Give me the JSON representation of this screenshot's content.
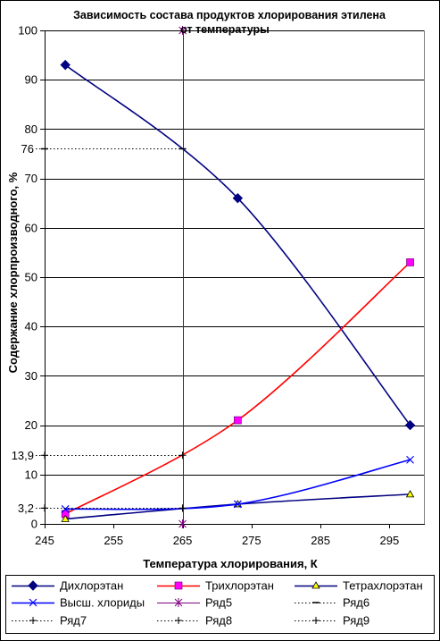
{
  "chart_data": {
    "type": "line",
    "title": [
      "Зависимость состава продуктов хлорирования этилена",
      "от температуры"
    ],
    "xlabel": "Температура хлорирования, К",
    "ylabel": "Содержание хлорпроизводного, %",
    "xlim": [
      245,
      300
    ],
    "ylim": [
      0,
      100
    ],
    "x_tick_labels": [
      "245",
      "255",
      "265",
      "275",
      "285",
      "295"
    ],
    "y_tick_labels": [
      "0",
      "10",
      "20",
      "30",
      "40",
      "50",
      "60",
      "70",
      "80",
      "90",
      "100"
    ],
    "grid": "horizontal",
    "legend_position": "bottom",
    "series": [
      {
        "name": "Дихлорэтан",
        "color": "#000080",
        "marker": "diamond",
        "marker_fill": "#000080",
        "smooth": true,
        "x": [
          248,
          273,
          298
        ],
        "y": [
          93,
          66,
          20
        ]
      },
      {
        "name": "Трихлорэтан",
        "color": "#FF0000",
        "marker": "square",
        "marker_fill": "#FF00FF",
        "smooth": true,
        "x": [
          248,
          273,
          298
        ],
        "y": [
          2,
          21,
          53
        ]
      },
      {
        "name": "Тетрахлорэтан",
        "color": "#000080",
        "marker": "triangle",
        "marker_fill": "#FFFF00",
        "smooth": true,
        "x": [
          248,
          273,
          298
        ],
        "y": [
          1,
          4,
          6
        ]
      },
      {
        "name": "Высш. хлориды",
        "color": "#0000FF",
        "marker": "x",
        "marker_fill": "none",
        "smooth": true,
        "x": [
          248,
          273,
          298
        ],
        "y": [
          3,
          4,
          13
        ]
      },
      {
        "name": "Ряд5",
        "color": "#800080",
        "marker": "asterisk",
        "marker_fill": "none",
        "smooth": false,
        "x": [
          265,
          265
        ],
        "y": [
          0,
          100
        ]
      },
      {
        "name": "Ряд6",
        "color": "#000000",
        "line_style": "dotted",
        "marker": "dash",
        "marker_fill": "none",
        "smooth": false,
        "x": [
          245,
          265
        ],
        "y": [
          76,
          76
        ],
        "data_label": "76"
      },
      {
        "name": "Ряд7",
        "color": "#000000",
        "line_style": "dotted",
        "marker": "plus",
        "marker_fill": "none",
        "smooth": false,
        "x": [
          245,
          265
        ],
        "y": [
          13.9,
          13.9
        ],
        "data_label": "13,9"
      },
      {
        "name": "Ряд8",
        "color": "#000000",
        "line_style": "dotted",
        "marker": "plus",
        "marker_fill": "none",
        "smooth": false,
        "x": [
          245,
          265
        ],
        "y": [
          3.2,
          3.2
        ],
        "data_label": "3,2"
      },
      {
        "name": "Ряд9",
        "color": "#000000",
        "line_style": "dotted",
        "marker": "plus",
        "marker_fill": "none",
        "smooth": false,
        "x": [
          245,
          265
        ],
        "y": [
          3.2,
          3.2
        ]
      }
    ]
  }
}
